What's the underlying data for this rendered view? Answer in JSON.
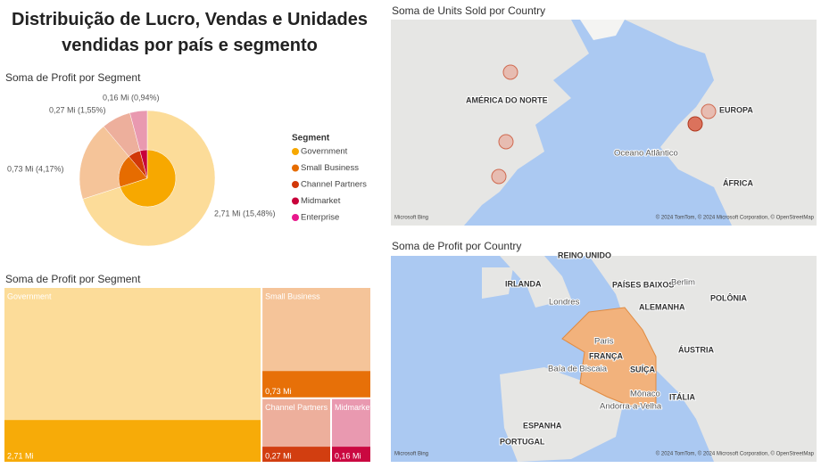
{
  "title": "Distribuição de Lucro, Vendas e Unidades vendidas por país e segmento",
  "chart_data": [
    {
      "type": "donut",
      "title": "Soma de Profit por Segment",
      "legend_title": "Segment",
      "categories": [
        "Government",
        "Small Business",
        "Channel Partners",
        "Midmarket",
        "Enterprise"
      ],
      "values": [
        2.71,
        0.73,
        0.27,
        0.16,
        null
      ],
      "value_labels": [
        "2,71 Mi (15,48%)",
        "0,73 Mi (4,17%)",
        "0,27 Mi (1,55%)",
        "0,16 Mi (0,94%)",
        null
      ],
      "colors": [
        "#f7a800",
        "#e66c00",
        "#d13808",
        "#c8003a",
        "#e8188c"
      ]
    },
    {
      "type": "treemap",
      "title": "Soma de Profit por Segment",
      "categories": [
        "Government",
        "Small Business",
        "Channel Partners",
        "Midmarket"
      ],
      "values": [
        2.71,
        0.73,
        0.27,
        0.16
      ],
      "value_labels": [
        "2,71 Mi",
        "0,73 Mi",
        "0,27 Mi",
        "0,16 Mi"
      ],
      "colors": [
        "#f7a800",
        "#e66c00",
        "#d13808",
        "#c8003a"
      ]
    }
  ],
  "maps": [
    {
      "title": "Soma de Units Sold por Country",
      "provider": "Microsoft Bing",
      "attribution": "© 2024 TomTom, © 2024 Microsoft Corporation, © OpenStreetMap",
      "labels": [
        "AMÉRICA DO NORTE",
        "EUROPA",
        "Oceano Atlântico",
        "ÁFRICA"
      ]
    },
    {
      "title": "Soma de Profit por Country",
      "provider": "Microsoft Bing",
      "attribution": "© 2024 TomTom, © 2024 Microsoft Corporation, © OpenStreetMap",
      "labels": [
        "REINO UNIDO",
        "IRLANDA",
        "Londres",
        "PAÍSES BAIXOS",
        "ALEMANHA",
        "Berlim",
        "POLÔNIA",
        "Paris",
        "FRANÇA",
        "Baía de Biscaia",
        "ESPANHA",
        "ITÁLIA",
        "SUÍÇA",
        "ÁUSTRIA",
        "PORTUGAL",
        "Mônaco",
        "Andorra-a-Velha"
      ]
    }
  ]
}
